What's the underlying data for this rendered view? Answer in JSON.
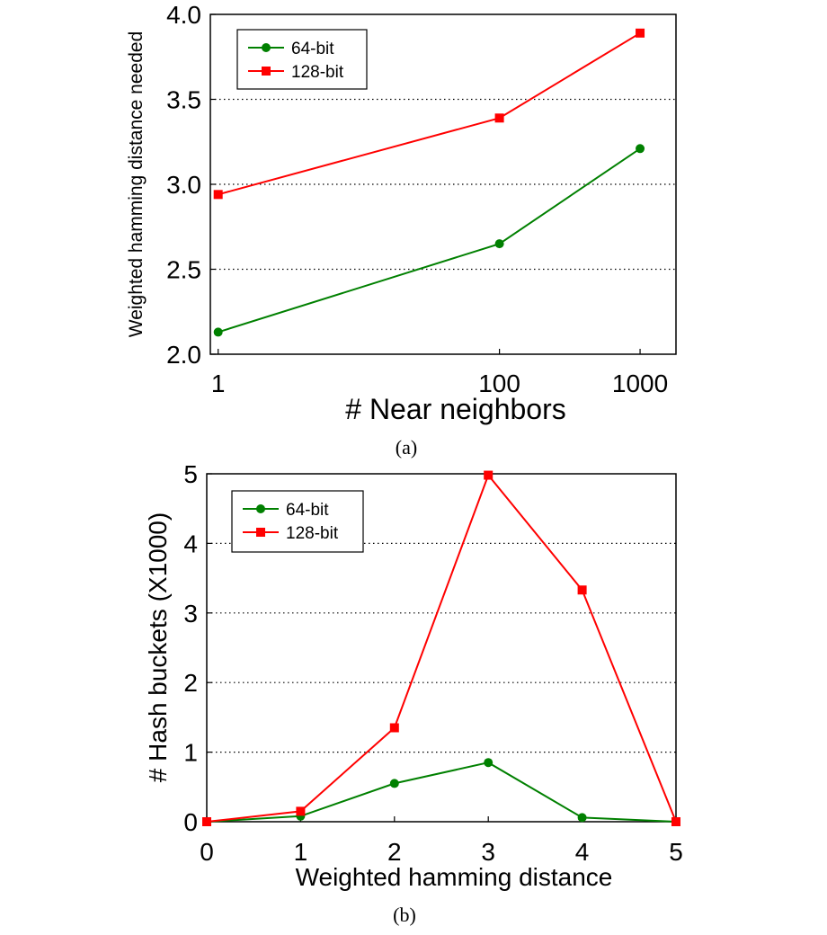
{
  "chart_data": [
    {
      "type": "line",
      "caption": "(a)",
      "xlabel": "# Near neighbors",
      "ylabel": "Weighted hamming distance needed",
      "xscale": "log",
      "xlim": [
        0.88,
        1800
      ],
      "ylim": [
        2.0,
        4.0
      ],
      "xticks": [
        1,
        100,
        1000
      ],
      "xtick_labels": [
        "1",
        "100",
        "1000"
      ],
      "yticks": [
        2.0,
        2.5,
        3.0,
        3.5,
        4.0
      ],
      "ytick_labels": [
        "2.0",
        "2.5",
        "3.0",
        "3.5",
        "4.0"
      ],
      "grid": "horizontal-dotted",
      "legend_position": "top-left",
      "series": [
        {
          "name": "64-bit",
          "color": "#008000",
          "marker": "circle",
          "x": [
            1,
            100,
            1000
          ],
          "values": [
            2.13,
            2.65,
            3.21
          ]
        },
        {
          "name": "128-bit",
          "color": "#ff0000",
          "marker": "square",
          "x": [
            1,
            100,
            1000
          ],
          "values": [
            2.94,
            3.39,
            3.89
          ]
        }
      ]
    },
    {
      "type": "line",
      "caption": "(b)",
      "xlabel": "Weighted hamming distance",
      "ylabel": "# Hash buckets (X1000)",
      "xscale": "linear",
      "xlim": [
        0,
        5
      ],
      "ylim": [
        0,
        5
      ],
      "xticks": [
        0,
        1,
        2,
        3,
        4,
        5
      ],
      "xtick_labels": [
        "0",
        "1",
        "2",
        "3",
        "4",
        "5"
      ],
      "yticks": [
        0,
        1,
        2,
        3,
        4,
        5
      ],
      "ytick_labels": [
        "0",
        "1",
        "2",
        "3",
        "4",
        "5"
      ],
      "grid": "horizontal-dotted",
      "legend_position": "top-left",
      "series": [
        {
          "name": "64-bit",
          "color": "#008000",
          "marker": "circle",
          "x": [
            0,
            1,
            2,
            3,
            4,
            5
          ],
          "values": [
            0.0,
            0.08,
            0.55,
            0.85,
            0.06,
            0.0
          ]
        },
        {
          "name": "128-bit",
          "color": "#ff0000",
          "marker": "square",
          "x": [
            0,
            1,
            2,
            3,
            4,
            5
          ],
          "values": [
            0.0,
            0.15,
            1.35,
            4.98,
            3.33,
            0.0
          ]
        }
      ]
    }
  ]
}
